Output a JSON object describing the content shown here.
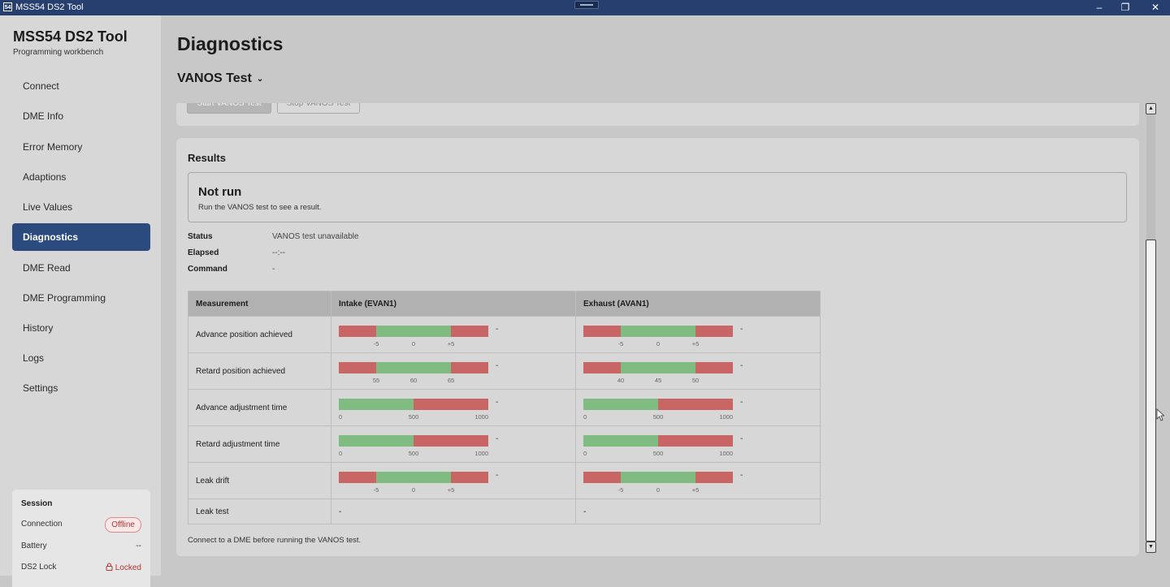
{
  "window": {
    "title": "MSS54 DS2 Tool",
    "icon_text": "54",
    "minimize": "–",
    "restore": "❐",
    "close": "✕"
  },
  "sidebar": {
    "app_name": "MSS54 DS2 Tool",
    "app_subtitle": "Programming workbench",
    "items": [
      {
        "label": "Connect"
      },
      {
        "label": "DME Info"
      },
      {
        "label": "Error Memory"
      },
      {
        "label": "Adaptions"
      },
      {
        "label": "Live Values"
      },
      {
        "label": "Diagnostics",
        "active": true
      },
      {
        "label": "DME Read"
      },
      {
        "label": "DME Programming"
      },
      {
        "label": "History"
      },
      {
        "label": "Logs"
      },
      {
        "label": "Settings"
      }
    ],
    "session": {
      "title": "Session",
      "connection_label": "Connection",
      "connection_value": "Offline",
      "battery_label": "Battery",
      "battery_value": "--",
      "lock_label": "DS2 Lock",
      "lock_value": "Locked"
    }
  },
  "main": {
    "title": "Diagnostics",
    "test_selector": "VANOS Test",
    "buttons": {
      "start": "Start VANOS Test",
      "stop": "Stop VANOS Test"
    },
    "results": {
      "heading": "Results",
      "state_title": "Not run",
      "state_desc": "Run the VANOS test to see a result.",
      "status_label": "Status",
      "status_value": "VANOS test unavailable",
      "elapsed_label": "Elapsed",
      "elapsed_value": "--:--",
      "command_label": "Command",
      "command_value": "-",
      "table": {
        "headers": [
          "Measurement",
          "Intake (EVAN1)",
          "Exhaust (AVAN1)"
        ],
        "rows": [
          {
            "name": "Advance position achieved",
            "intake": "-",
            "exhaust": "-"
          },
          {
            "name": "Retard position achieved",
            "intake": "-",
            "exhaust": "-"
          },
          {
            "name": "Advance adjustment time",
            "intake": "-",
            "exhaust": "-"
          },
          {
            "name": "Retard adjustment time",
            "intake": "-",
            "exhaust": "-"
          },
          {
            "name": "Leak drift",
            "intake": "-",
            "exhaust": "-"
          },
          {
            "name": "Leak test",
            "intake": "-",
            "exhaust": "-"
          }
        ],
        "ticks": {
          "adv_pos": [
            "-5",
            "0",
            "+5"
          ],
          "ret_pos_intake": [
            "55",
            "60",
            "65"
          ],
          "ret_pos_exhaust": [
            "40",
            "45",
            "50"
          ],
          "adj_time": [
            "0",
            "500",
            "1000"
          ],
          "leak_drift": [
            "-5",
            "0",
            "+5"
          ]
        }
      },
      "footer": "Connect to a DME before running the VANOS test."
    }
  },
  "colors": {
    "accent": "#2b4a7e",
    "titlebar": "#263f6f",
    "bad": "#c86565",
    "good": "#80bb82"
  }
}
